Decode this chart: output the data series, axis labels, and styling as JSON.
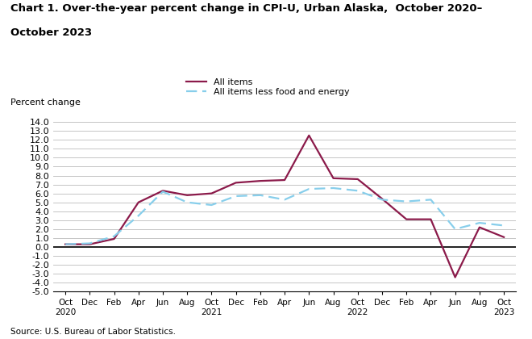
{
  "title_line1": "Chart 1. Over-the-year percent change in CPI-U, Urban Alaska,  October 2020–",
  "title_line2": "October 2023",
  "ylabel": "Percent change",
  "source": "Source: U.S. Bureau of Labor Statistics.",
  "months": [
    "Oct",
    "Dec",
    "Feb",
    "Apr",
    "Jun",
    "Aug",
    "Oct",
    "Dec",
    "Feb",
    "Apr",
    "Jun",
    "Aug",
    "Oct",
    "Dec",
    "Feb",
    "Apr",
    "Jun",
    "Aug",
    "Oct"
  ],
  "year_positions": {
    "0": "2020",
    "6": "2021",
    "12": "2022",
    "18": "2023"
  },
  "all_items": [
    0.3,
    0.3,
    0.9,
    5.0,
    6.3,
    5.8,
    6.0,
    7.2,
    7.4,
    7.5,
    12.5,
    7.7,
    7.6,
    5.4,
    3.1,
    3.1,
    -3.4,
    2.2,
    1.1
  ],
  "all_items_less": [
    0.3,
    0.4,
    1.2,
    3.5,
    6.2,
    5.0,
    4.7,
    5.7,
    5.8,
    5.3,
    6.5,
    6.6,
    6.3,
    5.3,
    5.1,
    5.3,
    2.0,
    2.7,
    2.4
  ],
  "ylim": [
    -5.0,
    14.0
  ],
  "yticks": [
    -5.0,
    -4.0,
    -3.0,
    -2.0,
    -1.0,
    0.0,
    1.0,
    2.0,
    3.0,
    4.0,
    5.0,
    6.0,
    7.0,
    8.0,
    9.0,
    10.0,
    11.0,
    12.0,
    13.0,
    14.0
  ],
  "all_items_color": "#8B1A4A",
  "all_items_less_color": "#87CEEB",
  "background_color": "#ffffff",
  "grid_color": "#bbbbbb"
}
